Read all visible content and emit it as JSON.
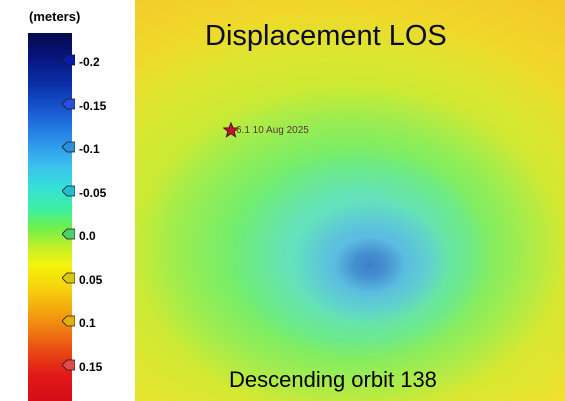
{
  "legend": {
    "unit_label": "(meters)",
    "ticks": [
      {
        "value": "-0.2",
        "marker_color": "#0a1aa8"
      },
      {
        "value": "-0.15",
        "marker_color": "#2a4fe0"
      },
      {
        "value": "-0.1",
        "marker_color": "#2c8fd8"
      },
      {
        "value": "-0.05",
        "marker_color": "#23bcd0"
      },
      {
        "value": "0.0",
        "marker_color": "#4fcf6a"
      },
      {
        "value": "0.05",
        "marker_color": "#d8c810"
      },
      {
        "value": "0.1",
        "marker_color": "#e2b008"
      },
      {
        "value": "0.15",
        "marker_color": "#e04a4a"
      }
    ]
  },
  "map": {
    "title": "Displacement LOS",
    "event_label": "6.1 10 Aug 2025",
    "subtitle": "Descending orbit 138",
    "epicenter_icon": "star-icon",
    "epicenter_color": "#c0142a"
  }
}
